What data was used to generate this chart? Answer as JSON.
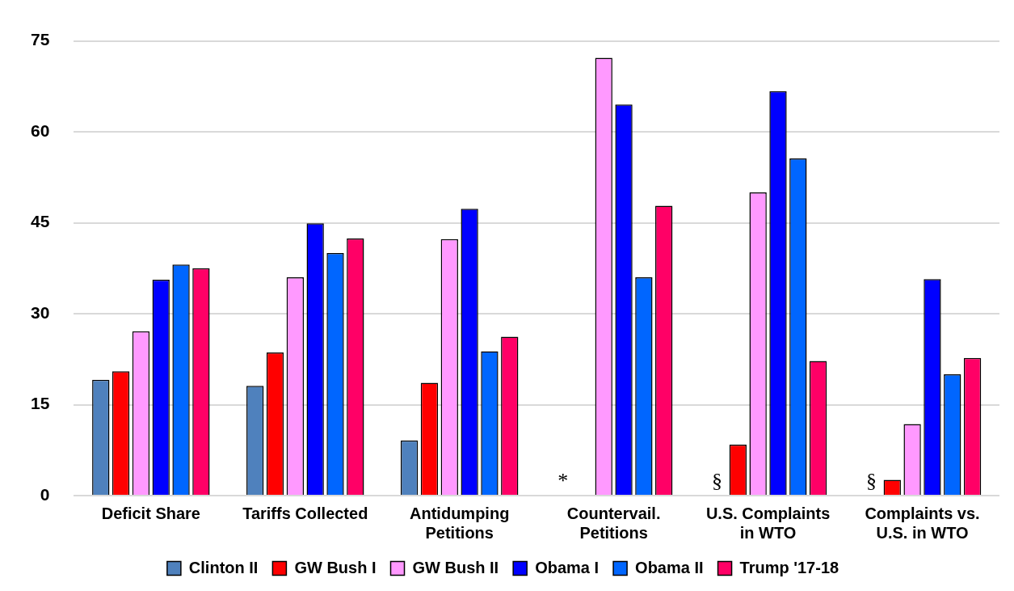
{
  "chart_data": {
    "type": "bar",
    "categories": [
      "Deficit Share",
      "Tariffs Collected",
      "Antidumping Petitions",
      "Countervail. Petitions",
      "U.S. Complaints in WTO",
      "Complaints vs. U.S. in WTO"
    ],
    "series": [
      {
        "name": "Clinton II",
        "color": "#4f81bd",
        "values": [
          19.1,
          18.1,
          9.1,
          null,
          null,
          null
        ]
      },
      {
        "name": "GW Bush I",
        "color": "#ff0000",
        "values": [
          20.5,
          23.6,
          18.6,
          null,
          8.4,
          2.6
        ]
      },
      {
        "name": "GW Bush II",
        "color": "#ff99ff",
        "values": [
          27.1,
          36.0,
          42.3,
          72.2,
          50.0,
          11.8
        ]
      },
      {
        "name": "Obama I",
        "color": "#0000ff",
        "values": [
          35.6,
          44.9,
          47.3,
          64.5,
          66.7,
          35.7
        ]
      },
      {
        "name": "Obama II",
        "color": "#0066ff",
        "values": [
          38.1,
          40.0,
          23.8,
          36.0,
          55.6,
          20.0
        ]
      },
      {
        "name": "Trump '17-18",
        "color": "#ff0066",
        "values": [
          37.5,
          42.4,
          26.2,
          47.8,
          22.2,
          22.7
        ]
      }
    ],
    "ylim": [
      0,
      75
    ],
    "yticks": [
      0,
      15,
      30,
      45,
      60,
      75
    ],
    "grid": "y",
    "legend": "bottom",
    "annotations": [
      {
        "text": "*",
        "x": "Countervail. Petitions",
        "y": 0
      },
      {
        "text": "§",
        "x": "U.S. Complaints in WTO",
        "y": 0
      },
      {
        "text": "§",
        "x": "Complaints vs. U.S. in WTO",
        "y": 0
      }
    ]
  }
}
